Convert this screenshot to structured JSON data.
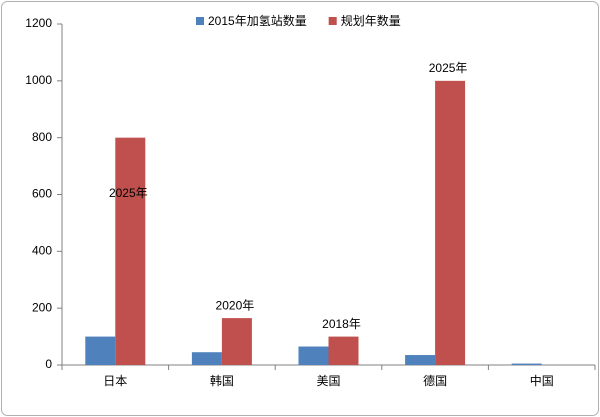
{
  "chart_data": {
    "type": "bar",
    "categories": [
      "日本",
      "韩国",
      "美国",
      "德国",
      "中国"
    ],
    "series": [
      {
        "name": "2015年加氢站数量",
        "color": "#4f81bd",
        "values": [
          100,
          45,
          65,
          35,
          5
        ]
      },
      {
        "name": "规划年数量",
        "color": "#c0504d",
        "values": [
          800,
          165,
          100,
          1000,
          null
        ]
      }
    ],
    "annotations": [
      "2025年",
      "2020年",
      "2018年",
      "2025年",
      null
    ],
    "ylim": [
      0,
      1200
    ],
    "yticks": [
      0,
      200,
      400,
      600,
      800,
      1000,
      1200
    ],
    "grid": false,
    "legend": "top"
  }
}
